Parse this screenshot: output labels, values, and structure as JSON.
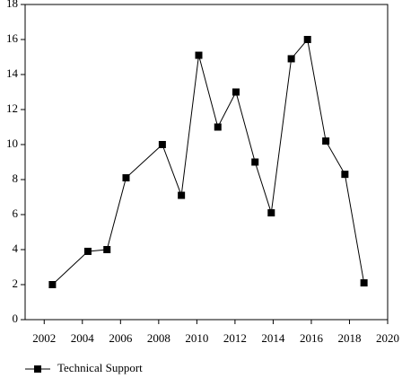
{
  "chart_data": {
    "type": "line",
    "x": [
      2002.43,
      2004.29,
      2005.29,
      2006.29,
      2008.19,
      2009.19,
      2010.1,
      2011.1,
      2012.05,
      2013.05,
      2013.9,
      2014.95,
      2015.8,
      2016.76,
      2017.76,
      2018.76
    ],
    "series": [
      {
        "name": "Technical Support",
        "color": "#000000",
        "values": [
          2.0,
          3.9,
          4.0,
          8.1,
          10.0,
          7.1,
          15.1,
          11.0,
          13.0,
          9.0,
          6.1,
          14.9,
          16.0,
          10.2,
          8.3,
          2.1
        ]
      }
    ],
    "xlim": [
      2001,
      2020
    ],
    "xticks": [
      2002,
      2004,
      2006,
      2008,
      2010,
      2012,
      2014,
      2016,
      2018,
      2020
    ],
    "ylim": [
      0,
      18
    ],
    "yticks": [
      0,
      2,
      4,
      6,
      8,
      10,
      12,
      14,
      16,
      18
    ],
    "grid": false,
    "legend": "bottom-left"
  }
}
